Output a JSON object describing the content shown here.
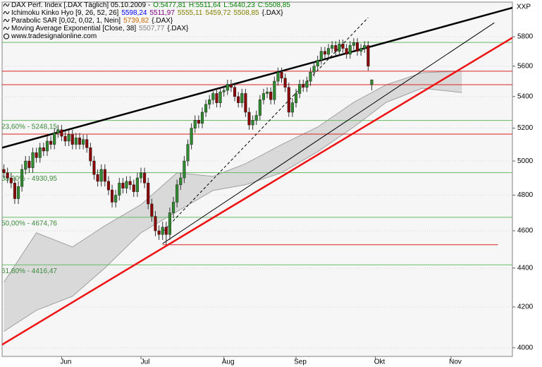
{
  "chart_data": {
    "type": "candlestick",
    "symbol": "XXP",
    "log_scale": true,
    "grid": true,
    "up_color": "#2e8b2e",
    "down_color": "#8b0000",
    "header": [
      [
        {
          "text": "DAX Perf. Index [.DAX  Täglich] 05.10.2009 -",
          "color": "#000000"
        },
        {
          "text": "O:5477,81",
          "color": "#008000"
        },
        {
          "text": "H:5511,64",
          "color": "#008000"
        },
        {
          "text": "L:5440,23",
          "color": "#008000"
        },
        {
          "text": "C:5508,85",
          "color": "#008000"
        }
      ],
      [
        {
          "text": "Ichimoku Kinko Hyo [9, 26, 52, 26]",
          "color": "#000000"
        },
        {
          "text": "5598,24",
          "color": "#0000ff"
        },
        {
          "text": "5511,97",
          "color": "#800080"
        },
        {
          "text": "5555,11",
          "color": "#808000"
        },
        {
          "text": "5459,72",
          "color": "#808000"
        },
        {
          "text": "5508,85",
          "color": "#808000"
        },
        {
          "text": "{.DAX}",
          "color": "#000000"
        }
      ],
      [
        {
          "text": "Parabolic SAR [0,02, 0,02, 1, Nein]",
          "color": "#000000"
        },
        {
          "text": "5739,82",
          "color": "#cc6600"
        },
        {
          "text": "{.DAX}",
          "color": "#000000"
        }
      ],
      [
        {
          "text": "Moving Average Exponential [Close, 38]",
          "color": "#000000"
        },
        {
          "text": "5507,77",
          "color": "#808080"
        },
        {
          "text": "{.DAX}",
          "color": "#000000"
        }
      ],
      [
        {
          "text": "www.tradesignalonline.com",
          "color": "#000000"
        }
      ]
    ],
    "xlim": [
      -0.5,
      141
    ],
    "xticks": [
      {
        "value": 16,
        "label": "Jun"
      },
      {
        "value": 38,
        "label": "Jul"
      },
      {
        "value": 61,
        "label": "Aug"
      },
      {
        "value": 81,
        "label": "Sep"
      },
      {
        "value": 103,
        "label": "Okt"
      },
      {
        "value": 124,
        "label": "Nov"
      }
    ],
    "ylim": [
      3959,
      6045
    ],
    "yticks": [
      4000,
      4200,
      4400,
      4600,
      4800,
      5000,
      5200,
      5400,
      5600,
      5800
    ],
    "open": [
      4950,
      4930,
      4900,
      4870,
      4780,
      4850,
      4950,
      5000,
      4960,
      5050,
      5020,
      5080,
      5060,
      5120,
      5100,
      5170,
      5190,
      5150,
      5120,
      5160,
      5100,
      5140,
      5100,
      5130,
      5080,
      5000,
      4920,
      4880,
      4950,
      4880,
      4830,
      4760,
      4800,
      4870,
      4840,
      4880,
      4860,
      4820,
      4900,
      4930,
      4870,
      4750,
      4680,
      4600,
      4580,
      4620,
      4580,
      4700,
      4760,
      4860,
      4900,
      5000,
      5100,
      5200,
      5250,
      5230,
      5300,
      5350,
      5380,
      5420,
      5360,
      5430,
      5440,
      5480,
      5460,
      5400,
      5360,
      5420,
      5300,
      5220,
      5250,
      5280,
      5380,
      5420,
      5430,
      5380,
      5500,
      5560,
      5520,
      5460,
      5300,
      5360,
      5420,
      5480,
      5460,
      5500,
      5560,
      5600,
      5640,
      5700,
      5680,
      5720,
      5740,
      5700,
      5750,
      5720,
      5680,
      5740,
      5760,
      5700,
      5720,
      5740,
      5477.81
    ],
    "high": [
      4980,
      4960,
      4930,
      4900,
      4880,
      4980,
      5030,
      5030,
      5080,
      5080,
      5110,
      5110,
      5150,
      5150,
      5200,
      5220,
      5220,
      5180,
      5190,
      5190,
      5170,
      5170,
      5160,
      5160,
      5110,
      5030,
      4950,
      4980,
      4980,
      4910,
      4860,
      4830,
      4900,
      4900,
      4910,
      4910,
      4890,
      4930,
      4960,
      4960,
      4900,
      4780,
      4710,
      4630,
      4650,
      4650,
      4730,
      4790,
      4890,
      4930,
      5030,
      5130,
      5230,
      5280,
      5280,
      5330,
      5380,
      5410,
      5450,
      5450,
      5460,
      5470,
      5510,
      5510,
      5490,
      5430,
      5450,
      5450,
      5330,
      5280,
      5310,
      5410,
      5450,
      5460,
      5460,
      5530,
      5590,
      5590,
      5550,
      5490,
      5390,
      5450,
      5510,
      5510,
      5530,
      5590,
      5630,
      5670,
      5730,
      5730,
      5750,
      5770,
      5770,
      5780,
      5780,
      5750,
      5770,
      5790,
      5790,
      5750,
      5770,
      5770,
      5511.64
    ],
    "low": [
      4900,
      4870,
      4840,
      4750,
      4750,
      4820,
      4920,
      4930,
      4930,
      4990,
      4990,
      5030,
      5030,
      5070,
      5070,
      5140,
      5120,
      5090,
      5090,
      5070,
      5070,
      5070,
      5070,
      5050,
      4970,
      4890,
      4850,
      4850,
      4850,
      4800,
      4730,
      4730,
      4770,
      4810,
      4810,
      4830,
      4790,
      4790,
      4870,
      4840,
      4720,
      4650,
      4570,
      4550,
      4550,
      4524,
      4550,
      4670,
      4730,
      4830,
      4870,
      4970,
      5070,
      5170,
      5200,
      5200,
      5270,
      5320,
      5350,
      5330,
      5330,
      5400,
      5410,
      5430,
      5370,
      5330,
      5330,
      5270,
      5190,
      5190,
      5220,
      5250,
      5350,
      5390,
      5350,
      5350,
      5470,
      5490,
      5430,
      5270,
      5270,
      5330,
      5390,
      5430,
      5430,
      5470,
      5530,
      5570,
      5610,
      5650,
      5650,
      5690,
      5670,
      5670,
      5690,
      5650,
      5650,
      5710,
      5670,
      5670,
      5690,
      5570,
      5440.23
    ],
    "close": [
      4930,
      4900,
      4870,
      4780,
      4850,
      4950,
      5000,
      4960,
      5050,
      5020,
      5080,
      5060,
      5120,
      5100,
      5170,
      5190,
      5150,
      5120,
      5160,
      5100,
      5140,
      5100,
      5130,
      5080,
      5000,
      4920,
      4880,
      4950,
      4880,
      4830,
      4760,
      4800,
      4870,
      4840,
      4880,
      4860,
      4820,
      4900,
      4930,
      4870,
      4750,
      4680,
      4600,
      4580,
      4620,
      4580,
      4700,
      4760,
      4860,
      4900,
      5000,
      5100,
      5200,
      5250,
      5230,
      5300,
      5350,
      5380,
      5420,
      5360,
      5430,
      5440,
      5480,
      5460,
      5400,
      5360,
      5420,
      5300,
      5220,
      5250,
      5280,
      5380,
      5420,
      5430,
      5380,
      5500,
      5560,
      5520,
      5460,
      5300,
      5360,
      5420,
      5480,
      5460,
      5500,
      5560,
      5600,
      5640,
      5700,
      5680,
      5720,
      5740,
      5700,
      5750,
      5720,
      5680,
      5740,
      5760,
      5700,
      5720,
      5740,
      5600,
      5508.85
    ],
    "cloud": {
      "color": "#d9d9d9",
      "edge_color": "#a0a0a0",
      "x": [
        0,
        9,
        19,
        28,
        38,
        48,
        58,
        67,
        77,
        87,
        97,
        106,
        116,
        127
      ],
      "upper": [
        4326,
        4589,
        4512,
        4628,
        4746,
        4930,
        4909,
        4984,
        5099,
        5207,
        5363,
        5477,
        5556,
        5567
      ],
      "lower": [
        4079,
        4183,
        4254,
        4400,
        4589,
        4707,
        4827,
        4860,
        4930,
        5056,
        5207,
        5363,
        5454,
        5426
      ]
    },
    "levels": [
      {
        "value": 5760.7,
        "color": "#66bb66"
      },
      {
        "value": 5566,
        "color": "#dd2222"
      },
      {
        "value": 5477,
        "color": "#dd2222"
      },
      {
        "value": 5163,
        "color": "#dd2222"
      }
    ],
    "fibonacci": {
      "color": "#66bb66",
      "items": [
        {
          "label": "23,60% - 5248,15",
          "value": 5248.15
        },
        {
          "label": "38,20% - 4930,95",
          "value": 4930.95
        },
        {
          "label": "50,00% - 4674,76",
          "value": 4674.76
        },
        {
          "label": "61,80% - 4416,47",
          "value": 4416.47
        }
      ]
    },
    "lines": [
      {
        "color": "#000000",
        "width": 2.5,
        "dash": false,
        "x": [
          -1,
          146
        ],
        "values": [
          5077,
          6040
        ]
      },
      {
        "color": "#000000",
        "width": 1,
        "dash": false,
        "x": [
          44,
          136
        ],
        "values": [
          4530,
          5898
        ]
      },
      {
        "color": "#000000",
        "width": 1,
        "dash": true,
        "x": [
          44,
          101
        ],
        "values": [
          4594,
          5934
        ]
      },
      {
        "color": "#ee1111",
        "width": 2.5,
        "dash": false,
        "x": [
          -1,
          146
        ],
        "values": [
          4010,
          5869
        ]
      },
      {
        "color": "#dd2222",
        "width": 1,
        "dash": false,
        "x": [
          44,
          137
        ],
        "values": [
          4524,
          4524
        ]
      }
    ]
  }
}
